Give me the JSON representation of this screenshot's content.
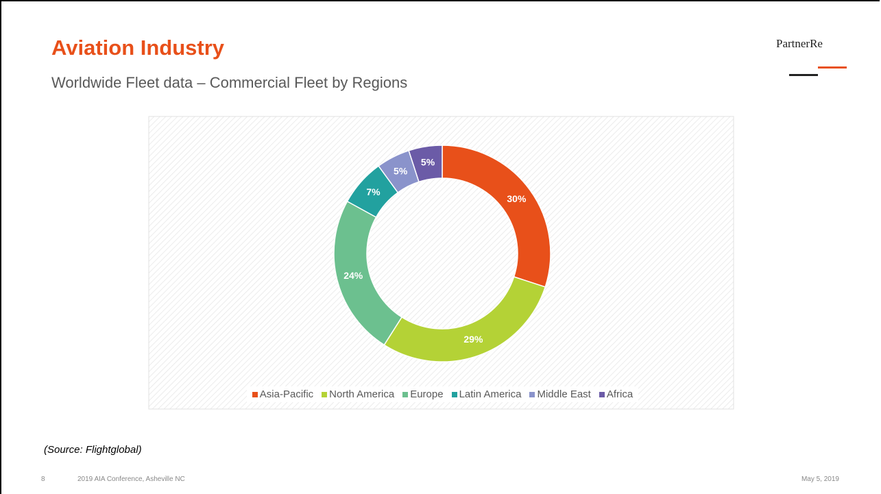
{
  "slide": {
    "title": "Aviation Industry",
    "subtitle": "Worldwide Fleet data – Commercial Fleet by Regions",
    "logo": "PartnerRe",
    "source": "(Source: Flightglobal)",
    "page_number": "8",
    "footer": "2019 AIA Conference, Asheville NC",
    "date": "May 5, 2019"
  },
  "chart_data": {
    "type": "donut",
    "categories": [
      "Asia-Pacific",
      "North America",
      "Europe",
      "Latin America",
      "Middle East",
      "Africa"
    ],
    "values": [
      30,
      29,
      24,
      7,
      5,
      5
    ],
    "value_labels": [
      "30%",
      "29%",
      "24%",
      "7%",
      "5%",
      "5%"
    ],
    "colors": [
      "#e8501a",
      "#b4d236",
      "#6cc08f",
      "#22a19f",
      "#8a93cb",
      "#6b5ba7"
    ],
    "legend": "bottom"
  }
}
